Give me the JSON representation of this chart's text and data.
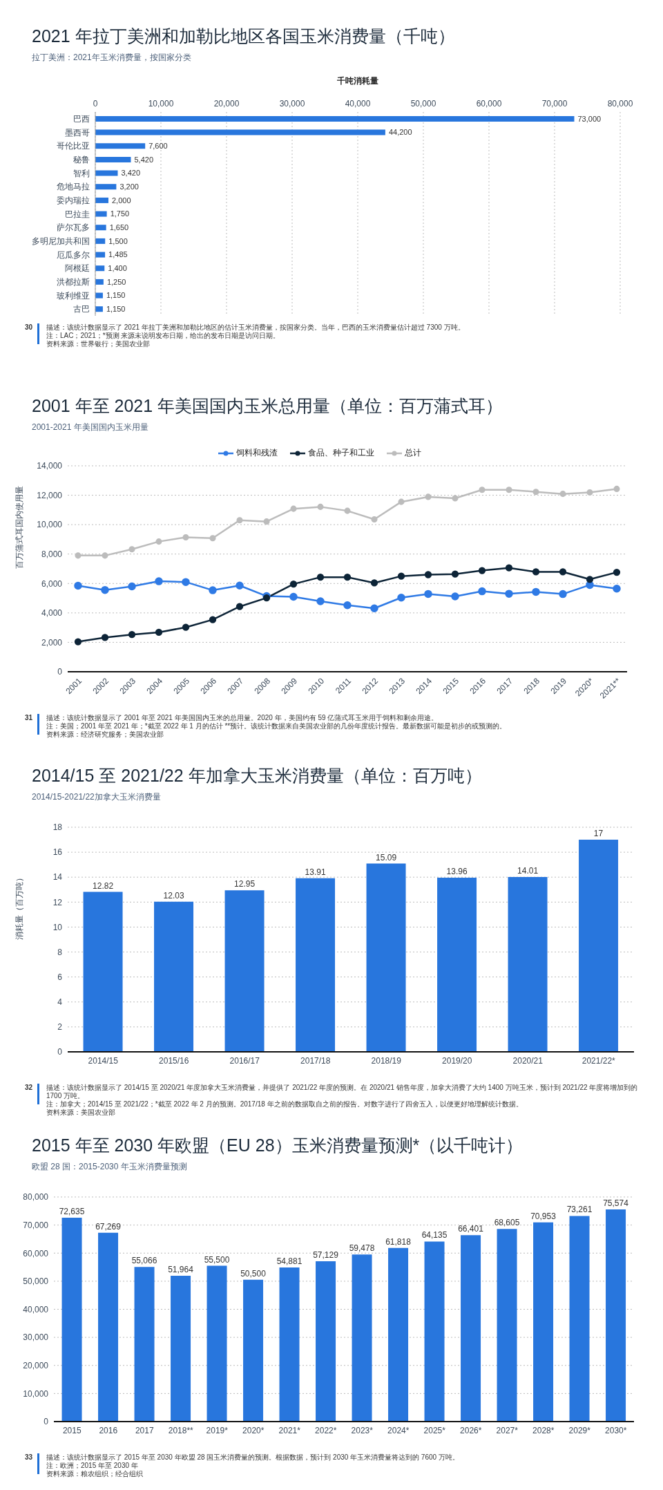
{
  "chart_data": [
    {
      "type": "bar",
      "orientation": "horizontal",
      "title": "2021 年拉丁美洲和加勒比地区各国玉米消费量（千吨）",
      "subtitle": "拉丁美洲：2021年玉米消费量，按国家分类",
      "xlabel": "千吨消耗量",
      "categories": [
        "巴西",
        "墨西哥",
        "哥伦比亚",
        "秘鲁",
        "智利",
        "危地马拉",
        "委内瑞拉",
        "巴拉圭",
        "萨尔瓦多",
        "多明尼加共和国",
        "厄瓜多尔",
        "阿根廷",
        "洪都拉斯",
        "玻利维亚",
        "古巴"
      ],
      "values": [
        73000,
        44200,
        7600,
        5420,
        3420,
        3200,
        2000,
        1750,
        1650,
        1500,
        1485,
        1400,
        1250,
        1150,
        1150
      ],
      "value_labels": [
        "73,000",
        "44,200",
        "7,600",
        "5,420",
        "3,420",
        "3,200",
        "2,000",
        "1,750",
        "1,650",
        "1,500",
        "1,485",
        "1,400",
        "1,250",
        "1,150",
        "1,150"
      ],
      "color": "#2876dd",
      "xlim": [
        0,
        80000
      ],
      "xticks": [
        0,
        {
          "value": 10000,
          "label": "10,000"
        },
        {
          "value": 20000,
          "label": "20,000"
        },
        {
          "value": 30000,
          "label": "30,000"
        },
        {
          "value": 40000,
          "label": "40,000"
        },
        {
          "value": 50000,
          "label": "50,000"
        },
        {
          "value": 60000,
          "label": "60,000"
        },
        {
          "value": 70000,
          "label": "70,000"
        },
        {
          "value": 80000,
          "label": "80,000"
        }
      ],
      "grid": "x",
      "annotations": [
        "30",
        "描述：该统计数据显示了 2021 年拉丁美洲和加勒比地区的估计玉米消费量，按国家分类。当年，巴西的玉米消费量估计超过 7300 万吨。",
        "注：LAC；2021；*预测 来源未说明发布日期，给出的发布日期是访问日期。",
        "资料来源：世界银行；美国农业部"
      ]
    },
    {
      "type": "line",
      "title": "2001 年至 2021 年美国国内玉米总用量（单位：百万蒲式耳）",
      "subtitle": "2001-2021 年美国国内玉米用量",
      "ylabel": "百万蒲式耳国内使用量",
      "categories": [
        "2001",
        "2002",
        "2003",
        "2004",
        "2005",
        "2006",
        "2007",
        "2008",
        "2009",
        "2010",
        "2011",
        "2012",
        "2013",
        "2014",
        "2015",
        "2016",
        "2017",
        "2018",
        "2019",
        "2020*",
        "2021**"
      ],
      "series": [
        {
          "name": "饲料和残渣",
          "color": "#2f7ae5",
          "values": [
            5850,
            5560,
            5800,
            6150,
            6100,
            5540,
            5860,
            5140,
            5100,
            4790,
            4520,
            4310,
            5040,
            5290,
            5120,
            5470,
            5300,
            5430,
            5280,
            5900,
            5650
          ]
        },
        {
          "name": "食品、种子和工业",
          "color": "#0d2437",
          "values": [
            2040,
            2330,
            2530,
            2680,
            3020,
            3540,
            4430,
            5020,
            5960,
            6430,
            6430,
            6040,
            6500,
            6600,
            6640,
            6880,
            7060,
            6790,
            6790,
            6280,
            6760
          ]
        },
        {
          "name": "总计",
          "color": "#bcbcbc",
          "values": [
            7900,
            7900,
            8330,
            8850,
            9140,
            9080,
            10300,
            10210,
            11080,
            11210,
            10940,
            10360,
            11550,
            11890,
            11790,
            12370,
            12370,
            12230,
            12090,
            12190,
            12430
          ]
        }
      ],
      "ylim": [
        0,
        14000
      ],
      "yticks": [
        0,
        {
          "value": 2000,
          "label": "2,000"
        },
        {
          "value": 4000,
          "label": "4,000"
        },
        {
          "value": 6000,
          "label": "6,000"
        },
        {
          "value": 8000,
          "label": "8,000"
        },
        {
          "value": 10000,
          "label": "10,000"
        },
        {
          "value": 12000,
          "label": "12,000"
        },
        {
          "value": 14000,
          "label": "14,000"
        }
      ],
      "grid": "y",
      "legend": "top",
      "marker": "circle",
      "line_style": "solid",
      "annotations": [
        "31",
        "描述：该统计数据显示了 2001 年至 2021 年美国国内玉米的总用量。2020 年，美国约有 59 亿蒲式耳玉米用于饲料和剩余用途。",
        "注：美国；2001 年至 2021 年；*截至 2022 年 1 月的估计 **预计。该统计数据来自美国农业部的几份年度统计报告。最新数据可能是初步的或预测的。",
        "资料来源：经济研究服务；美国农业部"
      ]
    },
    {
      "type": "bar",
      "title": "2014/15 至 2021/22 年加拿大玉米消费量（单位：百万吨）",
      "subtitle": "2014/15-2021/22加拿大玉米消费量",
      "ylabel": "消耗量（百万吨）",
      "categories": [
        "2014/15",
        "2015/16",
        "2016/17",
        "2017/18",
        "2018/19",
        "2019/20",
        "2020/21",
        "2021/22*"
      ],
      "values": [
        12.82,
        12.03,
        12.95,
        13.91,
        15.09,
        13.96,
        14.01,
        17
      ],
      "color": "#2876dd",
      "ylim": [
        0,
        18
      ],
      "yticks": [
        0,
        2,
        4,
        6,
        8,
        10,
        12,
        14,
        16,
        18
      ],
      "grid": "y",
      "data_labels": true,
      "annotations": [
        "32",
        "描述：该统计数据显示了 2014/15 至 2020/21 年度加拿大玉米消费量，并提供了 2021/22 年度的预测。在 2020/21 销售年度，加拿大消费了大约 1400 万吨玉米，预计到 2021/22 年度将增加到的 1700 万吨。",
        "注：加拿大；2014/15 至 2021/22；*截至 2022 年 2 月的预测。2017/18 年之前的数据取自之前的报告。对数字进行了四舍五入，以便更好地理解统计数据。",
        "资料来源：美国农业部"
      ]
    },
    {
      "type": "bar",
      "title": "2015 年至 2030 年欧盟（EU 28）玉米消费量预测*（以千吨计）",
      "subtitle": "欧盟 28 国：2015-2030 年玉米消费量预测",
      "categories": [
        "2015",
        "2016",
        "2017",
        "2018**",
        "2019*",
        "2020*",
        "2021*",
        "2022*",
        "2023*",
        "2024*",
        "2025*",
        "2026*",
        "2027*",
        "2028*",
        "2029*",
        "2030*"
      ],
      "values": [
        72635,
        67269,
        55066,
        51964,
        55500,
        50500,
        54881,
        57129,
        59478,
        61818,
        64135,
        66401,
        68605,
        70953,
        73261,
        75574
      ],
      "value_labels": [
        "72,635",
        "67,269",
        "55,066",
        "51,964",
        "55,500",
        "50,500",
        "54,881",
        "57,129",
        "59,478",
        "61,818",
        "64,135",
        "66,401",
        "68,605",
        "70,953",
        "73,261",
        "75,574"
      ],
      "color": "#2876dd",
      "ylim": [
        0,
        80000
      ],
      "yticks": [
        0,
        {
          "value": 10000,
          "label": "10,000"
        },
        {
          "value": 20000,
          "label": "20,000"
        },
        {
          "value": 30000,
          "label": "30,000"
        },
        {
          "value": 40000,
          "label": "40,000"
        },
        {
          "value": 50000,
          "label": "50,000"
        },
        {
          "value": 60000,
          "label": "60,000"
        },
        {
          "value": 70000,
          "label": "70,000"
        },
        {
          "value": 80000,
          "label": "80,000"
        }
      ],
      "grid": "y",
      "annotations": [
        "33",
        "描述：该统计数据显示了 2015 年至 2030 年欧盟 28 国玉米消费量的预测。根据数据，预计到 2030 年玉米消费量将达到的 7600 万吨。",
        "注：欧洲；2015 年至 2030 年",
        "资料来源：粮农组织；经合组织"
      ]
    }
  ]
}
